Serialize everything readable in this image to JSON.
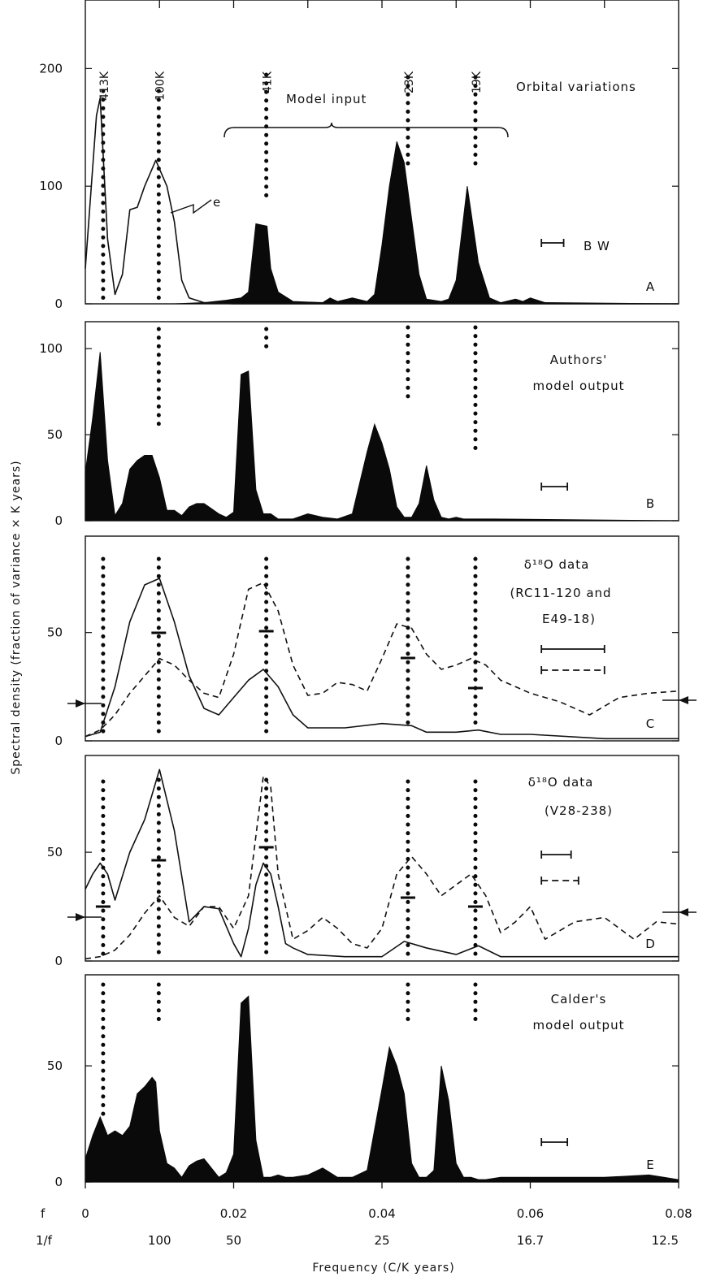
{
  "chart_data": {
    "type": "area",
    "y_axis_label": "Spectral density (fraction of variance × K years)",
    "x_axis_label": "Frequency (C/K years)",
    "x_ticks": {
      "f_label": "f",
      "f": [
        "0",
        "0.02",
        "0.04",
        "0.06",
        "0.08"
      ],
      "inv_label": "1/f",
      "inv": [
        "100",
        "50",
        "25",
        "16.7",
        "12.5"
      ]
    },
    "xlim": [
      0,
      0.08
    ],
    "period_labels": [
      "413K",
      "100K",
      "41K",
      "23K",
      "19K"
    ],
    "period_freqs": [
      0.0024,
      0.0099,
      0.0244,
      0.0435,
      0.0526
    ],
    "panels": [
      {
        "id": "A",
        "title_lines": [
          "Orbital variations"
        ],
        "extra_notes": [
          "Model input",
          "e",
          "B W"
        ],
        "ylim": [
          0,
          250
        ],
        "yticks": [
          0,
          100,
          200
        ],
        "series": [
          {
            "style": "filled",
            "x": [
              0,
              0.004,
              0.008,
              0.012,
              0.016,
              0.019,
              0.021,
              0.022,
              0.023,
              0.0245,
              0.025,
              0.026,
              0.028,
              0.032,
              0.033,
              0.034,
              0.036,
              0.038,
              0.039,
              0.04,
              0.041,
              0.042,
              0.043,
              0.044,
              0.045,
              0.046,
              0.048,
              0.049,
              0.05,
              0.0515,
              0.053,
              0.0545,
              0.056,
              0.058,
              0.059,
              0.06,
              0.062,
              0.08
            ],
            "y": [
              0,
              0,
              0,
              0,
              1,
              3,
              5,
              10,
              68,
              66,
              30,
              10,
              2,
              1,
              5,
              2,
              5,
              2,
              8,
              50,
              100,
              138,
              120,
              72,
              25,
              4,
              2,
              4,
              20,
              100,
              35,
              5,
              1,
              4,
              2,
              5,
              1,
              0
            ]
          },
          {
            "style": "solid",
            "x": [
              0,
              0.0015,
              0.002,
              0.003,
              0.004,
              0.005,
              0.006,
              0.007,
              0.008,
              0.0095,
              0.011,
              0.012,
              0.013,
              0.014,
              0.016,
              0.02,
              0.08
            ],
            "y": [
              30,
              160,
              175,
              55,
              8,
              25,
              80,
              82,
              100,
              122,
              100,
              70,
              20,
              5,
              1,
              0,
              0
            ]
          }
        ]
      },
      {
        "id": "B",
        "title_lines": [
          "Authors'",
          "model output"
        ],
        "extra_notes": [],
        "ylim": [
          0,
          110
        ],
        "yticks": [
          0,
          50,
          100
        ],
        "series": [
          {
            "style": "filled",
            "x": [
              0,
              0.001,
              0.002,
              0.003,
              0.004,
              0.005,
              0.006,
              0.007,
              0.008,
              0.009,
              0.01,
              0.011,
              0.012,
              0.013,
              0.014,
              0.015,
              0.016,
              0.017,
              0.018,
              0.019,
              0.02,
              0.021,
              0.022,
              0.023,
              0.024,
              0.025,
              0.026,
              0.027,
              0.028,
              0.03,
              0.032,
              0.034,
              0.036,
              0.038,
              0.039,
              0.04,
              0.041,
              0.042,
              0.043,
              0.044,
              0.045,
              0.046,
              0.047,
              0.048,
              0.049,
              0.05,
              0.051,
              0.052,
              0.053,
              0.055,
              0.08
            ],
            "y": [
              28,
              60,
              98,
              35,
              3,
              10,
              30,
              35,
              38,
              38,
              25,
              6,
              6,
              3,
              8,
              10,
              10,
              7,
              4,
              2,
              5,
              85,
              87,
              18,
              4,
              4,
              1,
              1,
              1,
              4,
              2,
              1,
              4,
              40,
              56,
              45,
              30,
              8,
              2,
              2,
              10,
              32,
              12,
              2,
              1,
              2,
              1,
              1,
              1,
              1,
              0
            ]
          }
        ]
      },
      {
        "id": "C",
        "title_lines": [
          "δ¹⁸O data",
          "(RC11-120 and",
          "E49-18)"
        ],
        "extra_notes": [],
        "ylim": [
          0,
          90
        ],
        "yticks": [
          0,
          50
        ],
        "series": [
          {
            "style": "solid",
            "x": [
              0,
              0.002,
              0.004,
              0.006,
              0.008,
              0.01,
              0.012,
              0.014,
              0.016,
              0.018,
              0.02,
              0.022,
              0.024,
              0.026,
              0.028,
              0.03,
              0.035,
              0.04,
              0.044,
              0.046,
              0.05,
              0.053,
              0.056,
              0.06,
              0.07,
              0.08
            ],
            "y": [
              2,
              4,
              25,
              55,
              72,
              75,
              55,
              30,
              15,
              12,
              20,
              28,
              33,
              25,
              12,
              6,
              6,
              8,
              7,
              4,
              4,
              5,
              3,
              3,
              1,
              1
            ]
          },
          {
            "style": "dashed",
            "x": [
              0,
              0.002,
              0.004,
              0.006,
              0.008,
              0.01,
              0.012,
              0.014,
              0.016,
              0.018,
              0.02,
              0.022,
              0.024,
              0.026,
              0.028,
              0.03,
              0.032,
              0.034,
              0.036,
              0.038,
              0.04,
              0.042,
              0.044,
              0.046,
              0.048,
              0.05,
              0.052,
              0.054,
              0.056,
              0.06,
              0.064,
              0.068,
              0.072,
              0.076,
              0.08
            ],
            "y": [
              2,
              5,
              12,
              22,
              30,
              38,
              35,
              28,
              22,
              20,
              40,
              70,
              73,
              60,
              35,
              21,
              22,
              27,
              26,
              23,
              38,
              54,
              52,
              40,
              33,
              35,
              38,
              35,
              28,
              22,
              18,
              12,
              20,
              22,
              23
            ]
          }
        ]
      },
      {
        "id": "D",
        "title_lines": [
          "δ¹⁸O data",
          "(V28-238)"
        ],
        "extra_notes": [],
        "ylim": [
          0,
          90
        ],
        "yticks": [
          0,
          50
        ],
        "series": [
          {
            "style": "solid",
            "x": [
              0,
              0.001,
              0.002,
              0.003,
              0.004,
              0.006,
              0.008,
              0.01,
              0.012,
              0.014,
              0.016,
              0.018,
              0.02,
              0.021,
              0.022,
              0.023,
              0.024,
              0.025,
              0.026,
              0.027,
              0.028,
              0.03,
              0.035,
              0.04,
              0.043,
              0.046,
              0.05,
              0.053,
              0.056,
              0.06,
              0.07,
              0.08
            ],
            "y": [
              33,
              40,
              45,
              40,
              28,
              50,
              65,
              88,
              60,
              18,
              25,
              24,
              8,
              2,
              15,
              35,
              45,
              40,
              25,
              8,
              6,
              3,
              2,
              2,
              9,
              6,
              3,
              7,
              2,
              2,
              2,
              2
            ]
          },
          {
            "style": "dashed",
            "x": [
              0,
              0.002,
              0.004,
              0.006,
              0.008,
              0.01,
              0.012,
              0.014,
              0.016,
              0.018,
              0.02,
              0.022,
              0.024,
              0.025,
              0.026,
              0.028,
              0.03,
              0.032,
              0.034,
              0.036,
              0.038,
              0.04,
              0.042,
              0.044,
              0.046,
              0.048,
              0.05,
              0.052,
              0.054,
              0.056,
              0.058,
              0.06,
              0.062,
              0.066,
              0.07,
              0.074,
              0.077,
              0.08
            ],
            "y": [
              1,
              2,
              5,
              12,
              22,
              30,
              20,
              16,
              25,
              25,
              15,
              30,
              85,
              80,
              40,
              10,
              14,
              20,
              15,
              8,
              6,
              15,
              40,
              48,
              40,
              30,
              35,
              40,
              30,
              13,
              18,
              25,
              10,
              18,
              20,
              10,
              18,
              17
            ]
          }
        ]
      },
      {
        "id": "E",
        "title_lines": [
          "Calder's",
          "model output"
        ],
        "extra_notes": [],
        "ylim": [
          0,
          85
        ],
        "yticks": [
          0,
          50
        ],
        "series": [
          {
            "style": "filled",
            "x": [
              0,
              0.001,
              0.002,
              0.003,
              0.004,
              0.005,
              0.006,
              0.007,
              0.008,
              0.009,
              0.0095,
              0.01,
              0.011,
              0.012,
              0.013,
              0.014,
              0.015,
              0.016,
              0.018,
              0.019,
              0.02,
              0.021,
              0.022,
              0.023,
              0.024,
              0.025,
              0.026,
              0.027,
              0.028,
              0.03,
              0.032,
              0.034,
              0.036,
              0.038,
              0.04,
              0.041,
              0.042,
              0.043,
              0.044,
              0.045,
              0.046,
              0.047,
              0.048,
              0.049,
              0.05,
              0.051,
              0.052,
              0.053,
              0.054,
              0.056,
              0.06,
              0.07,
              0.076,
              0.078,
              0.08
            ],
            "y": [
              10,
              20,
              28,
              20,
              22,
              20,
              24,
              38,
              41,
              45,
              43,
              22,
              8,
              6,
              2,
              7,
              9,
              10,
              2,
              4,
              12,
              77,
              80,
              18,
              2,
              2,
              3,
              2,
              2,
              3,
              6,
              2,
              2,
              5,
              40,
              58,
              50,
              38,
              8,
              2,
              2,
              5,
              50,
              35,
              8,
              2,
              2,
              1,
              1,
              2,
              2,
              2,
              3,
              2,
              1
            ]
          }
        ]
      }
    ]
  }
}
